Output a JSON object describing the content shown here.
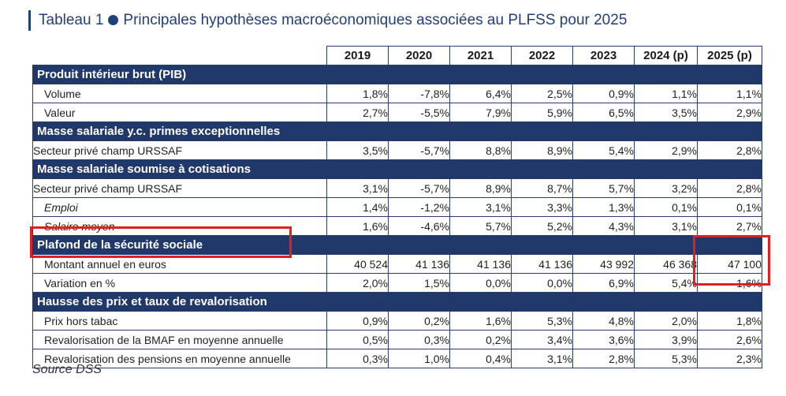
{
  "title": {
    "prefix": "Tableau 1",
    "text": "Principales hypothèses macroéconomiques associées au PLFSS pour 2025"
  },
  "columns": [
    "2019",
    "2020",
    "2021",
    "2022",
    "2023",
    "2024 (p)",
    "2025 (p)"
  ],
  "sections": [
    {
      "title": "Produit intérieur brut (PIB)",
      "rows": [
        {
          "label": "Volume",
          "style": "ind",
          "values": [
            "1,8%",
            "-7,8%",
            "6,4%",
            "2,5%",
            "0,9%",
            "1,1%",
            "1,1%"
          ]
        },
        {
          "label": "Valeur",
          "style": "ind",
          "values": [
            "2,7%",
            "-5,5%",
            "7,9%",
            "5,9%",
            "6,5%",
            "3,5%",
            "2,9%"
          ]
        }
      ]
    },
    {
      "title": "Masse salariale y.c. primes exceptionnelles",
      "rows": [
        {
          "label": "Secteur privé champ URSSAF",
          "style": "",
          "values": [
            "3,5%",
            "-5,7%",
            "8,8%",
            "8,9%",
            "5,4%",
            "2,9%",
            "2,8%"
          ]
        }
      ]
    },
    {
      "title": "Masse salariale soumise à cotisations",
      "rows": [
        {
          "label": "Secteur privé champ URSSAF",
          "style": "",
          "values": [
            "3,1%",
            "-5,7%",
            "8,9%",
            "8,7%",
            "5,7%",
            "3,2%",
            "2,8%"
          ]
        },
        {
          "label": "Emploi",
          "style": "it",
          "values": [
            "1,4%",
            "-1,2%",
            "3,1%",
            "3,3%",
            "1,3%",
            "0,1%",
            "0,1%"
          ]
        },
        {
          "label": "Salaire moyen",
          "style": "it",
          "values": [
            "1,6%",
            "-4,6%",
            "5,7%",
            "5,2%",
            "4,3%",
            "3,1%",
            "2,7%"
          ]
        }
      ]
    },
    {
      "title": "Plafond de la sécurité sociale",
      "rows": [
        {
          "label": "Montant annuel en euros",
          "style": "ind",
          "values": [
            "40 524",
            "41 136",
            "41 136",
            "41 136",
            "43 992",
            "46 368",
            "47 100"
          ]
        },
        {
          "label": "Variation en %",
          "style": "ind",
          "values": [
            "2,0%",
            "1,5%",
            "0,0%",
            "0,0%",
            "6,9%",
            "5,4%",
            "1,6%"
          ]
        }
      ]
    },
    {
      "title": "Hausse des prix et taux de revalorisation",
      "rows": [
        {
          "label": "Prix hors tabac",
          "style": "ind",
          "values": [
            "0,9%",
            "0,2%",
            "1,6%",
            "5,3%",
            "4,8%",
            "2,0%",
            "1,8%"
          ]
        },
        {
          "label": "Revalorisation de la BMAF en moyenne annuelle",
          "style": "ind",
          "values": [
            "0,5%",
            "0,3%",
            "0,2%",
            "3,4%",
            "3,6%",
            "3,9%",
            "2,6%"
          ]
        },
        {
          "label": "Revalorisation des pensions en moyenne annuelle",
          "style": "ind",
          "values": [
            "0,3%",
            "1,0%",
            "0,4%",
            "3,1%",
            "2,8%",
            "5,3%",
            "2,3%"
          ]
        }
      ]
    }
  ],
  "source": "Source DSS",
  "colors": {
    "header_band": "#21386b",
    "title": "#213f7a",
    "highlight": "#e02020"
  }
}
